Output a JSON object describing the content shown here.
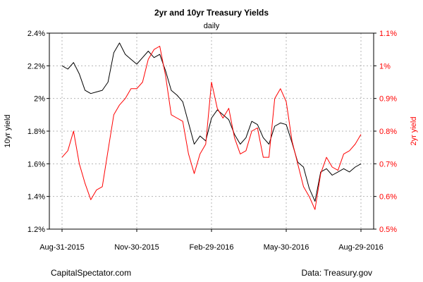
{
  "chart_data": {
    "type": "line",
    "title": "2yr and 10yr Treasury Yields",
    "subtitle": "daily",
    "x_tick_labels": [
      "Aug-31-2015",
      "Nov-30-2015",
      "Feb-29-2016",
      "May-30-2016",
      "Aug-29-2016"
    ],
    "x_range": [
      "2015-08-31",
      "2016-08-29"
    ],
    "left_axis": {
      "label": "10yr yield",
      "range": [
        1.2,
        2.4
      ],
      "ticks": [
        1.2,
        1.4,
        1.6,
        1.8,
        2.0,
        2.2,
        2.4
      ],
      "tick_labels": [
        "1.2%",
        "1.4%",
        "1.6%",
        "1.8%",
        "2%",
        "2.2%",
        "2.4%"
      ]
    },
    "right_axis": {
      "label": "2yr yield",
      "range": [
        0.5,
        1.1
      ],
      "ticks": [
        0.5,
        0.6,
        0.7,
        0.8,
        0.9,
        1.0,
        1.1
      ],
      "tick_labels": [
        "0.5%",
        "0.6%",
        "0.7%",
        "0.8%",
        "0.9%",
        "1%",
        "1.1%"
      ]
    },
    "grid": true,
    "series": [
      {
        "axis": "left",
        "color": "#000000",
        "x": [
          "2015-08-31",
          "2015-09-07",
          "2015-09-14",
          "2015-09-21",
          "2015-09-28",
          "2015-10-05",
          "2015-10-12",
          "2015-10-19",
          "2015-10-26",
          "2015-11-02",
          "2015-11-09",
          "2015-11-16",
          "2015-11-23",
          "2015-11-30",
          "2015-12-07",
          "2015-12-14",
          "2015-12-21",
          "2015-12-28",
          "2016-01-04",
          "2016-01-11",
          "2016-01-18",
          "2016-01-25",
          "2016-02-01",
          "2016-02-08",
          "2016-02-15",
          "2016-02-22",
          "2016-02-29",
          "2016-03-07",
          "2016-03-14",
          "2016-03-21",
          "2016-03-28",
          "2016-04-04",
          "2016-04-11",
          "2016-04-18",
          "2016-04-25",
          "2016-05-02",
          "2016-05-09",
          "2016-05-16",
          "2016-05-23",
          "2016-05-30",
          "2016-06-06",
          "2016-06-13",
          "2016-06-20",
          "2016-06-27",
          "2016-07-04",
          "2016-07-11",
          "2016-07-18",
          "2016-07-25",
          "2016-08-01",
          "2016-08-08",
          "2016-08-15",
          "2016-08-22",
          "2016-08-29"
        ],
        "y": [
          2.2,
          2.18,
          2.22,
          2.15,
          2.05,
          2.03,
          2.04,
          2.05,
          2.1,
          2.28,
          2.34,
          2.27,
          2.24,
          2.21,
          2.25,
          2.29,
          2.25,
          2.27,
          2.17,
          2.05,
          2.02,
          1.98,
          1.85,
          1.72,
          1.77,
          1.74,
          1.88,
          1.93,
          1.9,
          1.87,
          1.78,
          1.72,
          1.76,
          1.86,
          1.84,
          1.76,
          1.72,
          1.83,
          1.85,
          1.84,
          1.73,
          1.61,
          1.58,
          1.45,
          1.37,
          1.55,
          1.57,
          1.53,
          1.55,
          1.57,
          1.55,
          1.58,
          1.6
        ]
      },
      {
        "axis": "right",
        "color": "#ff0000",
        "x": [
          "2015-08-31",
          "2015-09-07",
          "2015-09-14",
          "2015-09-21",
          "2015-09-28",
          "2015-10-05",
          "2015-10-12",
          "2015-10-19",
          "2015-10-26",
          "2015-11-02",
          "2015-11-09",
          "2015-11-16",
          "2015-11-23",
          "2015-11-30",
          "2015-12-07",
          "2015-12-14",
          "2015-12-21",
          "2015-12-28",
          "2016-01-04",
          "2016-01-11",
          "2016-01-18",
          "2016-01-25",
          "2016-02-01",
          "2016-02-08",
          "2016-02-15",
          "2016-02-22",
          "2016-02-29",
          "2016-03-07",
          "2016-03-14",
          "2016-03-21",
          "2016-03-28",
          "2016-04-04",
          "2016-04-11",
          "2016-04-18",
          "2016-04-25",
          "2016-05-02",
          "2016-05-09",
          "2016-05-16",
          "2016-05-23",
          "2016-05-30",
          "2016-06-06",
          "2016-06-13",
          "2016-06-20",
          "2016-06-27",
          "2016-07-04",
          "2016-07-11",
          "2016-07-18",
          "2016-07-25",
          "2016-08-01",
          "2016-08-08",
          "2016-08-15",
          "2016-08-22",
          "2016-08-29"
        ],
        "y": [
          0.72,
          0.74,
          0.8,
          0.7,
          0.64,
          0.59,
          0.62,
          0.63,
          0.74,
          0.85,
          0.88,
          0.9,
          0.93,
          0.93,
          0.95,
          1.02,
          1.05,
          1.06,
          0.97,
          0.85,
          0.84,
          0.83,
          0.73,
          0.67,
          0.73,
          0.76,
          0.95,
          0.87,
          0.84,
          0.87,
          0.78,
          0.73,
          0.74,
          0.8,
          0.81,
          0.72,
          0.72,
          0.9,
          0.93,
          0.89,
          0.77,
          0.7,
          0.63,
          0.6,
          0.56,
          0.67,
          0.72,
          0.69,
          0.68,
          0.73,
          0.74,
          0.76,
          0.79
        ]
      }
    ]
  },
  "footer": {
    "left": "CapitalSpectator.com",
    "right": "Data: Treasury.gov"
  }
}
